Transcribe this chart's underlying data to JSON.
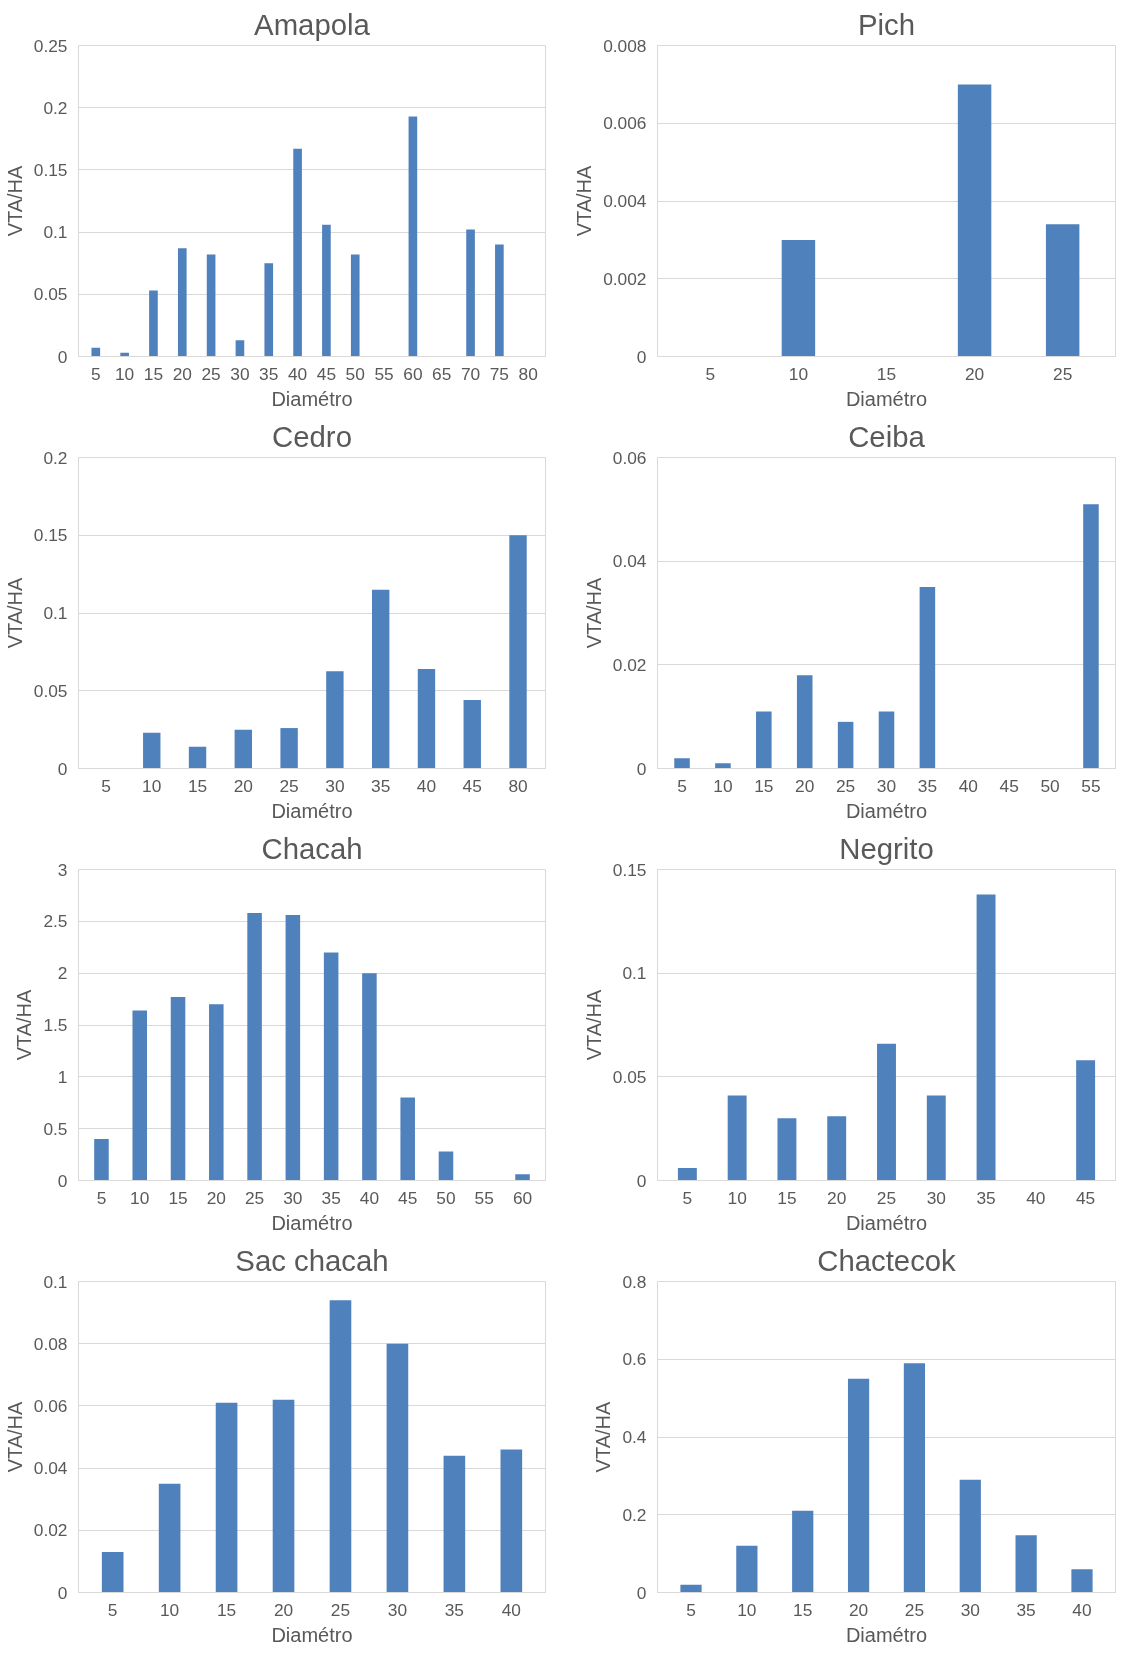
{
  "chart_data": [
    {
      "type": "bar",
      "title": "Amapola",
      "xlabel": "Diamétro",
      "ylabel": "VTA/HA",
      "categories": [
        "5",
        "10",
        "15",
        "20",
        "25",
        "30",
        "35",
        "40",
        "45",
        "50",
        "55",
        "60",
        "65",
        "70",
        "75",
        "80"
      ],
      "values": [
        0.007,
        0.003,
        0.053,
        0.087,
        0.082,
        0.013,
        0.075,
        0.167,
        0.106,
        0.082,
        null,
        0.193,
        null,
        0.102,
        0.09,
        null
      ],
      "color": "#4f81bd",
      "ylim": [
        0,
        0.25
      ],
      "yticks": [
        0,
        0.05,
        0.1,
        0.15,
        0.2,
        0.25
      ],
      "grid": "y"
    },
    {
      "type": "bar",
      "title": "Pich",
      "xlabel": "Diamétro",
      "ylabel": "VTA/HA",
      "categories": [
        "5",
        "10",
        "15",
        "20",
        "25"
      ],
      "values": [
        null,
        0.003,
        null,
        0.007,
        0.0034
      ],
      "color": "#4f81bd",
      "ylim": [
        0,
        0.008
      ],
      "yticks": [
        0,
        0.002,
        0.004,
        0.006,
        0.008
      ],
      "grid": "y"
    },
    {
      "type": "bar",
      "title": "Cedro",
      "xlabel": "Diamétro",
      "ylabel": "VTA/HA",
      "categories": [
        "5",
        "10",
        "15",
        "20",
        "25",
        "30",
        "35",
        "40",
        "45",
        "80"
      ],
      "values": [
        null,
        0.023,
        0.014,
        0.025,
        0.026,
        0.0625,
        0.115,
        0.064,
        0.044,
        0.15
      ],
      "color": "#4f81bd",
      "ylim": [
        0,
        0.2
      ],
      "yticks": [
        0,
        0.05,
        0.1,
        0.15,
        0.2
      ],
      "grid": "y"
    },
    {
      "type": "bar",
      "title": "Ceiba",
      "xlabel": "Diamétro",
      "ylabel": "VTA/HA",
      "categories": [
        "5",
        "10",
        "15",
        "20",
        "25",
        "30",
        "35",
        "40",
        "45",
        "50",
        "55"
      ],
      "values": [
        0.002,
        0.001,
        0.011,
        0.018,
        0.009,
        0.011,
        0.035,
        null,
        null,
        null,
        0.051
      ],
      "color": "#4f81bd",
      "ylim": [
        0,
        0.06
      ],
      "yticks": [
        0,
        0.02,
        0.04,
        0.06
      ],
      "grid": "y"
    },
    {
      "type": "bar",
      "title": "Chacah",
      "xlabel": "Diamétro",
      "ylabel": "VTA/HA",
      "categories": [
        "5",
        "10",
        "15",
        "20",
        "25",
        "30",
        "35",
        "40",
        "45",
        "50",
        "55",
        "60"
      ],
      "values": [
        0.4,
        1.64,
        1.77,
        1.7,
        2.58,
        2.56,
        2.2,
        2.0,
        0.8,
        0.28,
        null,
        0.06
      ],
      "color": "#4f81bd",
      "ylim": [
        0,
        3
      ],
      "yticks": [
        0,
        0.5,
        1,
        1.5,
        2,
        2.5,
        3
      ],
      "grid": "y"
    },
    {
      "type": "bar",
      "title": "Negrito",
      "xlabel": "Diamétro",
      "ylabel": "VTA/HA",
      "categories": [
        "5",
        "10",
        "15",
        "20",
        "25",
        "30",
        "35",
        "40",
        "45"
      ],
      "values": [
        0.006,
        0.041,
        0.03,
        0.031,
        0.066,
        0.041,
        0.138,
        null,
        0.058
      ],
      "color": "#4f81bd",
      "ylim": [
        0,
        0.15
      ],
      "yticks": [
        0,
        0.05,
        0.1,
        0.15
      ],
      "grid": "y"
    },
    {
      "type": "bar",
      "title": "Sac chacah",
      "xlabel": "Diamétro",
      "ylabel": "VTA/HA",
      "categories": [
        "5",
        "10",
        "15",
        "20",
        "25",
        "30",
        "35",
        "40"
      ],
      "values": [
        0.013,
        0.035,
        0.061,
        0.062,
        0.094,
        0.08,
        0.044,
        0.046
      ],
      "color": "#4f81bd",
      "ylim": [
        0,
        0.1
      ],
      "yticks": [
        0,
        0.02,
        0.04,
        0.06,
        0.08,
        0.1
      ],
      "grid": "y"
    },
    {
      "type": "bar",
      "title": "Chactecok",
      "xlabel": "Diamétro",
      "ylabel": "VTA/HA",
      "categories": [
        "5",
        "10",
        "15",
        "20",
        "25",
        "30",
        "35",
        "40"
      ],
      "values": [
        0.02,
        0.12,
        0.21,
        0.55,
        0.59,
        0.29,
        0.147,
        0.06
      ],
      "color": "#4f81bd",
      "ylim": [
        0,
        0.8
      ],
      "yticks": [
        0,
        0.2,
        0.4,
        0.6,
        0.8
      ],
      "grid": "y"
    }
  ]
}
